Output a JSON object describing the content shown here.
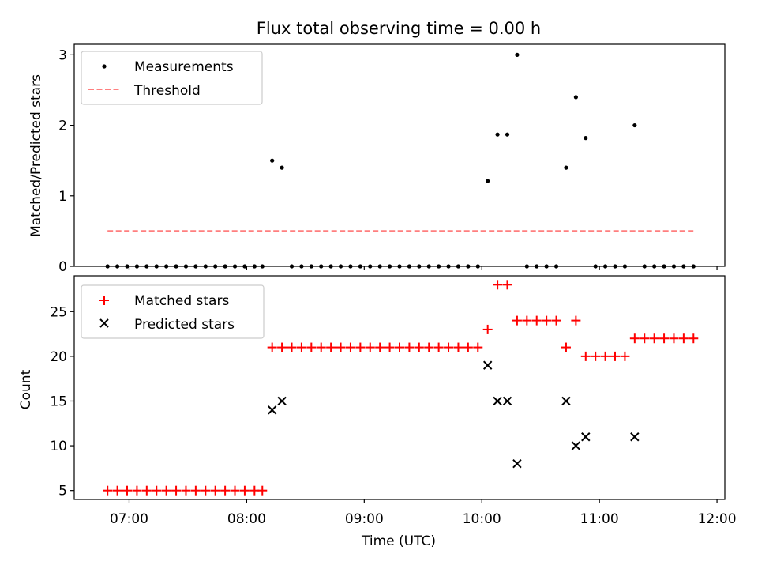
{
  "title": "Flux total observing time = 0.00 h",
  "xlabel": "Time (UTC)",
  "x_ticks": [
    "07:00",
    "08:00",
    "09:00",
    "10:00",
    "11:00",
    "12:00"
  ],
  "colors": {
    "matched": "#ff0000",
    "predicted": "#000000",
    "measurement": "#000000",
    "threshold": "#ff7f7f"
  },
  "chart_data": [
    {
      "type": "scatter",
      "ylabel": "Matched/Predicted stars",
      "xlim": [
        "06:32",
        "12:04"
      ],
      "ylim": [
        0,
        3.15
      ],
      "y_ticks": [
        "0",
        "1",
        "2",
        "3"
      ],
      "legend": {
        "placement": "top-left",
        "entries": [
          "Measurements",
          "Threshold"
        ]
      },
      "threshold": {
        "name": "Threshold",
        "value": 0.5,
        "x_start": "06:49",
        "x_end": "11:49"
      },
      "series": [
        {
          "name": "Measurements",
          "points": [
            [
              "06:49",
              0
            ],
            [
              "06:54",
              0
            ],
            [
              "06:59",
              0
            ],
            [
              "07:04",
              0
            ],
            [
              "07:09",
              0
            ],
            [
              "07:14",
              0
            ],
            [
              "07:19",
              0
            ],
            [
              "07:24",
              0
            ],
            [
              "07:29",
              0
            ],
            [
              "07:34",
              0
            ],
            [
              "07:39",
              0
            ],
            [
              "07:44",
              0
            ],
            [
              "07:49",
              0
            ],
            [
              "07:54",
              0
            ],
            [
              "07:59",
              0
            ],
            [
              "08:04",
              0
            ],
            [
              "08:08",
              0
            ],
            [
              "08:13",
              1.5
            ],
            [
              "08:18",
              1.4
            ],
            [
              "08:23",
              0
            ],
            [
              "08:28",
              0
            ],
            [
              "08:33",
              0
            ],
            [
              "08:38",
              0
            ],
            [
              "08:43",
              0
            ],
            [
              "08:48",
              0
            ],
            [
              "08:53",
              0
            ],
            [
              "08:58",
              0
            ],
            [
              "09:03",
              0
            ],
            [
              "09:08",
              0
            ],
            [
              "09:13",
              0
            ],
            [
              "09:18",
              0
            ],
            [
              "09:23",
              0
            ],
            [
              "09:28",
              0
            ],
            [
              "09:33",
              0
            ],
            [
              "09:38",
              0
            ],
            [
              "09:43",
              0
            ],
            [
              "09:48",
              0
            ],
            [
              "09:53",
              0
            ],
            [
              "09:58",
              0
            ],
            [
              "10:03",
              1.21
            ],
            [
              "10:08",
              1.87
            ],
            [
              "10:13",
              1.87
            ],
            [
              "10:18",
              3.0
            ],
            [
              "10:23",
              0
            ],
            [
              "10:28",
              0
            ],
            [
              "10:33",
              0
            ],
            [
              "10:38",
              0
            ],
            [
              "10:43",
              1.4
            ],
            [
              "10:48",
              2.4
            ],
            [
              "10:53",
              1.82
            ],
            [
              "10:58",
              0
            ],
            [
              "11:03",
              0
            ],
            [
              "11:08",
              0
            ],
            [
              "11:13",
              0
            ],
            [
              "11:18",
              2.0
            ],
            [
              "11:23",
              0
            ],
            [
              "11:28",
              0
            ],
            [
              "11:33",
              0
            ],
            [
              "11:38",
              0
            ],
            [
              "11:43",
              0
            ],
            [
              "11:48",
              0
            ]
          ]
        }
      ]
    },
    {
      "type": "scatter",
      "ylabel": "Count",
      "xlim": [
        "06:32",
        "12:04"
      ],
      "ylim": [
        4,
        29
      ],
      "y_ticks": [
        "5",
        "10",
        "15",
        "20",
        "25"
      ],
      "legend": {
        "placement": "top-left",
        "entries": [
          "Matched stars",
          "Predicted stars"
        ]
      },
      "series": [
        {
          "name": "Matched stars",
          "points": [
            [
              "06:49",
              5
            ],
            [
              "06:54",
              5
            ],
            [
              "06:59",
              5
            ],
            [
              "07:04",
              5
            ],
            [
              "07:09",
              5
            ],
            [
              "07:14",
              5
            ],
            [
              "07:19",
              5
            ],
            [
              "07:24",
              5
            ],
            [
              "07:29",
              5
            ],
            [
              "07:34",
              5
            ],
            [
              "07:39",
              5
            ],
            [
              "07:44",
              5
            ],
            [
              "07:49",
              5
            ],
            [
              "07:54",
              5
            ],
            [
              "07:59",
              5
            ],
            [
              "08:04",
              5
            ],
            [
              "08:08",
              5
            ],
            [
              "08:13",
              21
            ],
            [
              "08:18",
              21
            ],
            [
              "08:23",
              21
            ],
            [
              "08:28",
              21
            ],
            [
              "08:33",
              21
            ],
            [
              "08:38",
              21
            ],
            [
              "08:43",
              21
            ],
            [
              "08:48",
              21
            ],
            [
              "08:53",
              21
            ],
            [
              "08:58",
              21
            ],
            [
              "09:03",
              21
            ],
            [
              "09:08",
              21
            ],
            [
              "09:13",
              21
            ],
            [
              "09:18",
              21
            ],
            [
              "09:23",
              21
            ],
            [
              "09:28",
              21
            ],
            [
              "09:33",
              21
            ],
            [
              "09:38",
              21
            ],
            [
              "09:43",
              21
            ],
            [
              "09:48",
              21
            ],
            [
              "09:53",
              21
            ],
            [
              "09:58",
              21
            ],
            [
              "10:03",
              23
            ],
            [
              "10:08",
              28
            ],
            [
              "10:13",
              28
            ],
            [
              "10:18",
              24
            ],
            [
              "10:23",
              24
            ],
            [
              "10:28",
              24
            ],
            [
              "10:33",
              24
            ],
            [
              "10:38",
              24
            ],
            [
              "10:43",
              21
            ],
            [
              "10:48",
              24
            ],
            [
              "10:53",
              20
            ],
            [
              "10:58",
              20
            ],
            [
              "11:03",
              20
            ],
            [
              "11:08",
              20
            ],
            [
              "11:13",
              20
            ],
            [
              "11:18",
              22
            ],
            [
              "11:23",
              22
            ],
            [
              "11:28",
              22
            ],
            [
              "11:33",
              22
            ],
            [
              "11:38",
              22
            ],
            [
              "11:43",
              22
            ],
            [
              "11:48",
              22
            ]
          ]
        },
        {
          "name": "Predicted stars",
          "points": [
            [
              "08:13",
              14
            ],
            [
              "08:18",
              15
            ],
            [
              "10:03",
              19
            ],
            [
              "10:08",
              15
            ],
            [
              "10:13",
              15
            ],
            [
              "10:18",
              8
            ],
            [
              "10:43",
              15
            ],
            [
              "10:48",
              10
            ],
            [
              "10:53",
              11
            ],
            [
              "11:18",
              11
            ]
          ]
        }
      ]
    }
  ]
}
